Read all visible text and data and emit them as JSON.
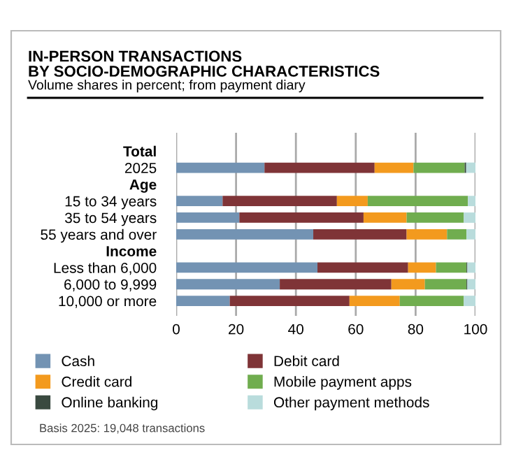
{
  "chart_data": {
    "type": "bar",
    "orientation": "horizontal",
    "stacked": true,
    "title": "IN-PERSON TRANSACTIONS\nBY SOCIO-DEMOGRAPHIC CHARACTERISTICS",
    "subtitle": "Volume shares in percent; from payment diary",
    "categories": [
      "Total",
      "2025",
      "Age",
      "15 to 34 years",
      "35 to 54 years",
      "55 years and over",
      "Income",
      "Less than 6,000",
      "6,000 to 9,999",
      "10,000 or more"
    ],
    "series": [
      {
        "name": "Cash",
        "color": "#7393b3",
        "values": [
          null,
          29.5,
          null,
          15.5,
          21.1,
          45.8,
          null,
          47.2,
          34.6,
          17.9
        ]
      },
      {
        "name": "Debit card",
        "color": "#7f3437",
        "values": [
          null,
          36.8,
          null,
          38.2,
          41.5,
          31.2,
          null,
          30.3,
          37.3,
          40.0
        ]
      },
      {
        "name": "Credit card",
        "color": "#f39a1e",
        "values": [
          null,
          13.0,
          null,
          10.3,
          14.4,
          13.5,
          null,
          9.3,
          11.2,
          16.8
        ]
      },
      {
        "name": "Mobile payment apps",
        "color": "#70ad4f",
        "values": [
          null,
          17.1,
          null,
          33.5,
          19.1,
          6.5,
          null,
          10.2,
          13.9,
          21.4
        ]
      },
      {
        "name": "Online banking",
        "color": "#3a4a40",
        "values": [
          null,
          0.5,
          null,
          0,
          0,
          0,
          null,
          0.3,
          0.3,
          0
        ]
      },
      {
        "name": "Other payment methods",
        "color": "#b9dcdc",
        "values": [
          null,
          3.1,
          null,
          2.5,
          3.9,
          3.0,
          null,
          2.7,
          2.7,
          3.9
        ]
      }
    ],
    "xlim": [
      0,
      100
    ],
    "xticks": [
      0,
      20,
      40,
      60,
      80,
      100
    ],
    "grid": "x",
    "legend": "bottom",
    "annotations": [
      "Basis 2025: 19,048 transactions"
    ]
  }
}
